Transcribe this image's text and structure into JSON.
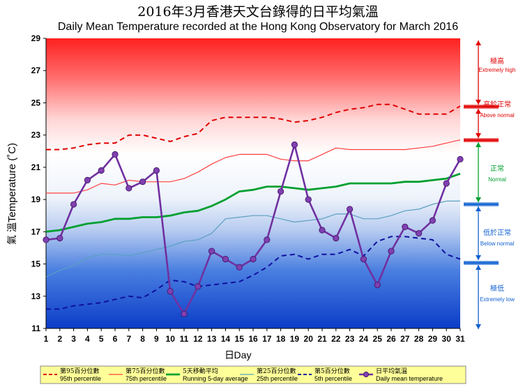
{
  "title_cn": "2016年3月香港天文台錄得的日平均氣溫",
  "title_en": "Daily Mean Temperature recorded at the Hong Kong Observatory for March 2016",
  "colors": {
    "p95": "#e00000",
    "p75": "#ff4040",
    "running": "#00a030",
    "p25": "#5aa0c0",
    "p5": "#1010a0",
    "daily": "#7030a0",
    "daily_marker": "#8040b0",
    "legend_bg": "#ffff99",
    "side_red": "#e00000",
    "side_green": "#00a030",
    "side_blue": "#1060d0"
  },
  "side_labels": [
    {
      "cn": "極高",
      "en": "Extremely high",
      "color": "side_red"
    },
    {
      "cn": "高於正常",
      "en": "Above normal",
      "color": "side_red"
    },
    {
      "cn": "正常",
      "en": "Normal",
      "color": "side_green"
    },
    {
      "cn": "低於正常",
      "en": "Below normal",
      "color": "side_blue"
    },
    {
      "cn": "極低",
      "en": "Extremely low",
      "color": "side_blue"
    }
  ],
  "chart_data": {
    "type": "line",
    "title": "Daily Mean Temperature recorded at the Hong Kong Observatory for March 2016",
    "xlabel": "日Day",
    "xlabel_cn": "日",
    "xlabel_en": "Day",
    "ylabel_cn": "氣溫",
    "ylabel_en": "Temperature (˚C)",
    "xlim": [
      1,
      31
    ],
    "ylim": [
      11,
      29
    ],
    "x": [
      1,
      2,
      3,
      4,
      5,
      6,
      7,
      8,
      9,
      10,
      11,
      12,
      13,
      14,
      15,
      16,
      17,
      18,
      19,
      20,
      21,
      22,
      23,
      24,
      25,
      26,
      27,
      28,
      29,
      30,
      31
    ],
    "x_ticks": [
      "1",
      "2",
      "3",
      "4",
      "5",
      "6",
      "7",
      "8",
      "9",
      "10",
      "11",
      "12",
      "13",
      "14",
      "15",
      "16",
      "17",
      "18",
      "19",
      "20",
      "21",
      "22",
      "23",
      "24",
      "25",
      "26",
      "27",
      "28",
      "29",
      "30",
      "31"
    ],
    "y_ticks": [
      "11",
      "13",
      "15",
      "17",
      "19",
      "21",
      "23",
      "25",
      "27",
      "29"
    ],
    "grid": false,
    "legend_position": "bottom",
    "series": [
      {
        "name": "95th percentile",
        "name_cn": "第95百分位數",
        "style": "dashed",
        "color_key": "p95",
        "values": [
          22.1,
          22.1,
          22.2,
          22.4,
          22.5,
          22.5,
          23.0,
          23.0,
          22.8,
          22.6,
          22.9,
          23.1,
          23.9,
          24.1,
          24.1,
          24.1,
          24.1,
          24.0,
          23.8,
          23.9,
          24.1,
          24.4,
          24.6,
          24.7,
          24.9,
          24.9,
          24.6,
          24.3,
          24.3,
          24.3,
          24.8
        ]
      },
      {
        "name": "75th percentile",
        "name_cn": "第75百分位數",
        "style": "solid-thin",
        "color_key": "p75",
        "values": [
          19.4,
          19.4,
          19.4,
          19.6,
          20.0,
          19.9,
          20.2,
          20.1,
          20.1,
          20.1,
          20.3,
          20.7,
          21.2,
          21.6,
          21.8,
          21.8,
          21.8,
          21.5,
          21.4,
          21.4,
          21.8,
          22.2,
          22.1,
          22.1,
          22.1,
          22.1,
          22.1,
          22.2,
          22.3,
          22.5,
          22.7
        ]
      },
      {
        "name": "Running 5-day average",
        "name_cn": "5天移動平均",
        "style": "solid-thick",
        "color_key": "running",
        "values": [
          17.0,
          17.1,
          17.3,
          17.5,
          17.6,
          17.8,
          17.8,
          17.9,
          17.9,
          18.0,
          18.2,
          18.3,
          18.6,
          19.0,
          19.5,
          19.6,
          19.8,
          19.8,
          19.7,
          19.6,
          19.7,
          19.8,
          20.0,
          20.0,
          20.0,
          20.0,
          20.1,
          20.1,
          20.2,
          20.3,
          20.6
        ]
      },
      {
        "name": "25th percentile",
        "name_cn": "第25百分位數",
        "style": "solid-thin",
        "color_key": "p25",
        "values": [
          14.2,
          14.6,
          14.9,
          15.4,
          15.6,
          15.6,
          15.5,
          15.7,
          15.9,
          16.1,
          16.4,
          16.5,
          16.9,
          17.8,
          17.9,
          18.0,
          18.0,
          17.8,
          17.6,
          17.7,
          17.8,
          18.1,
          18.1,
          17.8,
          17.8,
          18.0,
          18.3,
          18.4,
          18.7,
          18.9,
          18.9
        ]
      },
      {
        "name": "5th percentile",
        "name_cn": "第5百分位數",
        "style": "dashed",
        "color_key": "p5",
        "values": [
          12.2,
          12.2,
          12.4,
          12.5,
          12.6,
          12.8,
          13.0,
          12.9,
          13.4,
          14.0,
          13.9,
          13.6,
          13.7,
          13.8,
          13.9,
          14.3,
          14.8,
          15.5,
          15.6,
          15.3,
          15.6,
          15.6,
          15.9,
          15.5,
          16.4,
          16.7,
          16.7,
          16.6,
          16.5,
          15.6,
          15.3
        ]
      },
      {
        "name": "Daily mean temperature",
        "name_cn": "日平均氣溫",
        "style": "line-marker",
        "color_key": "daily",
        "values": [
          16.5,
          16.6,
          18.7,
          20.2,
          20.8,
          21.8,
          19.7,
          20.1,
          20.8,
          13.3,
          11.9,
          13.6,
          15.8,
          15.3,
          14.8,
          15.3,
          16.5,
          19.5,
          22.4,
          19.0,
          17.1,
          16.6,
          18.4,
          15.3,
          13.7,
          15.8,
          17.3,
          16.9,
          17.7,
          20.0,
          21.5
        ]
      }
    ]
  }
}
